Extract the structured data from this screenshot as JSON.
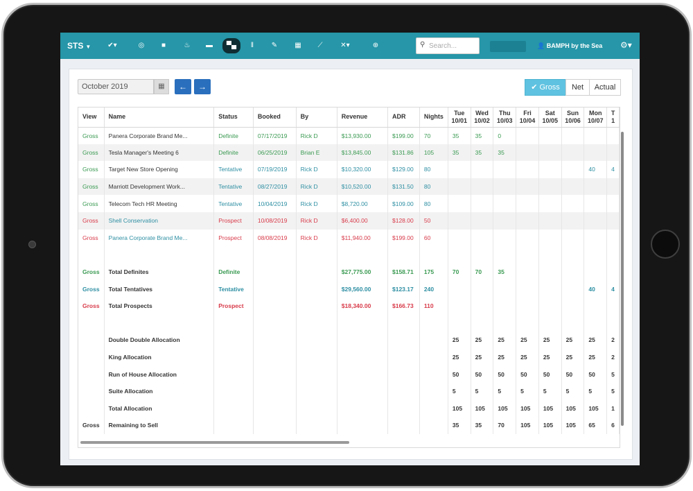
{
  "nav": {
    "brand": "STS",
    "search_placeholder": "Search...",
    "user": "BAMPH by the Sea",
    "icons": [
      "check-icon",
      "circle-icon",
      "folder-icon",
      "chart-icon",
      "briefcase-icon",
      "bed-icon",
      "food-icon",
      "pencil-icon",
      "calendar-icon",
      "trend-icon",
      "tools-icon",
      "plus-circle-icon"
    ]
  },
  "toolbar": {
    "month": "October 2019",
    "views": [
      "Gross",
      "Net",
      "Actual"
    ],
    "active_view": "Gross"
  },
  "table": {
    "columns": [
      "View",
      "Name",
      "Status",
      "Booked",
      "By",
      "Revenue",
      "ADR",
      "Nights"
    ],
    "days": [
      {
        "dow": "Tue",
        "date": "10/01"
      },
      {
        "dow": "Wed",
        "date": "10/02"
      },
      {
        "dow": "Thu",
        "date": "10/03"
      },
      {
        "dow": "Fri",
        "date": "10/04"
      },
      {
        "dow": "Sat",
        "date": "10/05"
      },
      {
        "dow": "Sun",
        "date": "10/06"
      },
      {
        "dow": "Mon",
        "date": "10/07"
      },
      {
        "dow": "T",
        "date": "1"
      }
    ],
    "rows": [
      {
        "view": "Gross",
        "name": "Panera Corporate Brand Me...",
        "status": "Definite",
        "booked": "07/17/2019",
        "by": "Rick D",
        "revenue": "$13,930.00",
        "adr": "$199.00",
        "nights": "70",
        "days": [
          "35",
          "35",
          "0",
          "",
          "",
          "",
          "",
          ""
        ]
      },
      {
        "view": "Gross",
        "name": "Tesla Manager's Meeting 6",
        "status": "Definite",
        "booked": "06/25/2019",
        "by": "Brian E",
        "revenue": "$13,845.00",
        "adr": "$131.86",
        "nights": "105",
        "days": [
          "35",
          "35",
          "35",
          "",
          "",
          "",
          "",
          ""
        ]
      },
      {
        "view": "Gross",
        "name": "Target New Store Opening",
        "status": "Tentative",
        "booked": "07/19/2019",
        "by": "Rick D",
        "revenue": "$10,320.00",
        "adr": "$129.00",
        "nights": "80",
        "days": [
          "",
          "",
          "",
          "",
          "",
          "",
          "40",
          "4"
        ]
      },
      {
        "view": "Gross",
        "name": "Marriott Development Work...",
        "status": "Tentative",
        "booked": "08/27/2019",
        "by": "Rick D",
        "revenue": "$10,520.00",
        "adr": "$131.50",
        "nights": "80",
        "days": [
          "",
          "",
          "",
          "",
          "",
          "",
          "",
          ""
        ]
      },
      {
        "view": "Gross",
        "name": "Telecom Tech HR Meeting",
        "status": "Tentative",
        "booked": "10/04/2019",
        "by": "Rick D",
        "revenue": "$8,720.00",
        "adr": "$109.00",
        "nights": "80",
        "days": [
          "",
          "",
          "",
          "",
          "",
          "",
          "",
          ""
        ]
      },
      {
        "view": "Gross",
        "name": "Shell Conservation",
        "status": "Prospect",
        "booked": "10/08/2019",
        "by": "Rick D",
        "revenue": "$6,400.00",
        "adr": "$128.00",
        "nights": "50",
        "days": [
          "",
          "",
          "",
          "",
          "",
          "",
          "",
          ""
        ]
      },
      {
        "view": "Gross",
        "name": "Panera Corporate Brand Me...",
        "status": "Prospect",
        "booked": "08/08/2019",
        "by": "Rick D",
        "revenue": "$11,940.00",
        "adr": "$199.00",
        "nights": "60",
        "days": [
          "",
          "",
          "",
          "",
          "",
          "",
          "",
          ""
        ]
      }
    ],
    "totals": [
      {
        "view": "Gross",
        "name": "Total Definites",
        "status": "Definite",
        "revenue": "$27,775.00",
        "adr": "$158.71",
        "nights": "175",
        "days": [
          "70",
          "70",
          "35",
          "",
          "",
          "",
          "",
          ""
        ]
      },
      {
        "view": "Gross",
        "name": "Total Tentatives",
        "status": "Tentative",
        "revenue": "$29,560.00",
        "adr": "$123.17",
        "nights": "240",
        "days": [
          "",
          "",
          "",
          "",
          "",
          "",
          "40",
          "4"
        ]
      },
      {
        "view": "Gross",
        "name": "Total Prospects",
        "status": "Prospect",
        "revenue": "$18,340.00",
        "adr": "$166.73",
        "nights": "110",
        "days": [
          "",
          "",
          "",
          "",
          "",
          "",
          "",
          ""
        ]
      }
    ],
    "allocations": [
      {
        "view": "",
        "name": "Double Double Allocation",
        "days": [
          "25",
          "25",
          "25",
          "25",
          "25",
          "25",
          "25",
          "2"
        ]
      },
      {
        "view": "",
        "name": "King Allocation",
        "days": [
          "25",
          "25",
          "25",
          "25",
          "25",
          "25",
          "25",
          "2"
        ]
      },
      {
        "view": "",
        "name": "Run of House Allocation",
        "days": [
          "50",
          "50",
          "50",
          "50",
          "50",
          "50",
          "50",
          "5"
        ]
      },
      {
        "view": "",
        "name": "Suite Allocation",
        "days": [
          "5",
          "5",
          "5",
          "5",
          "5",
          "5",
          "5",
          "5"
        ]
      },
      {
        "view": "",
        "name": "Total Allocation",
        "days": [
          "105",
          "105",
          "105",
          "105",
          "105",
          "105",
          "105",
          "1"
        ]
      },
      {
        "view": "Gross",
        "name": "Remaining to Sell",
        "days": [
          "35",
          "35",
          "70",
          "105",
          "105",
          "105",
          "65",
          "6"
        ]
      }
    ]
  },
  "colors": {
    "nav": "#2696a8",
    "definite": "#3a9a52",
    "tentative": "#2e8fa3",
    "prospect": "#d83b4a",
    "gross_button": "#5fc2e0",
    "arrow_button": "#2a6fbd"
  }
}
